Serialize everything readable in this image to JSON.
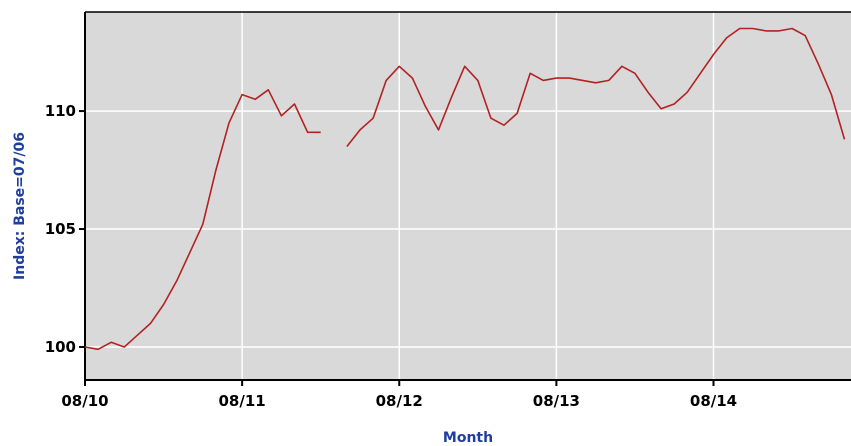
{
  "chart_data": {
    "type": "line",
    "title": "",
    "xlabel": "Month",
    "ylabel": "Index: Base=07/06",
    "x_tick_labels": [
      "08/10",
      "08/11",
      "08/12",
      "08/13",
      "08/14"
    ],
    "y_tick_labels": [
      "100",
      "105",
      "110"
    ],
    "ylim": [
      98.6,
      114.2
    ],
    "grid": true,
    "colors": {
      "plot_bg": "#d9d9d9",
      "grid": "#ffffff",
      "line": "#b22222",
      "axis_title": "#1f3f9f"
    },
    "series": [
      {
        "values": [
          100.0,
          99.9,
          100.2,
          100.0,
          100.5,
          101.0,
          101.8,
          102.8,
          104.0,
          105.2,
          107.5,
          109.5,
          110.7,
          110.5,
          110.9,
          109.8,
          110.3,
          109.1,
          109.1,
          null,
          108.5,
          109.2,
          109.7,
          111.3,
          111.9,
          111.4,
          110.2,
          109.2,
          110.6,
          111.9,
          111.3,
          109.7,
          109.4,
          109.9,
          111.6,
          111.3,
          111.4,
          111.4,
          111.3,
          111.2,
          111.3,
          111.9,
          111.6,
          110.8,
          110.1,
          110.3,
          110.8,
          111.6,
          112.4,
          113.1,
          113.5,
          113.5,
          113.4,
          113.4,
          113.5,
          113.2,
          112.0,
          110.7,
          108.8
        ]
      }
    ]
  }
}
